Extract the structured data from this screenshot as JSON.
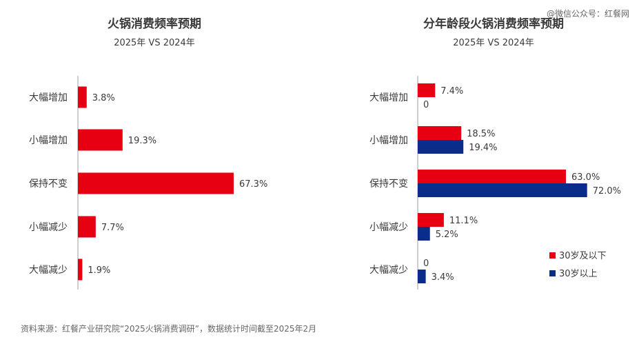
{
  "watermark_top": "@微信公众号：红餐网",
  "source": "资料来源：红餐产业研究院“2025火锅消费调研”，数据统计时间截至2025年2月",
  "chart_data": [
    {
      "type": "bar",
      "orientation": "horizontal",
      "title": "火锅消费频率预期",
      "subtitle": "2025年 VS 2024年",
      "categories": [
        "大幅增加",
        "小幅增加",
        "保持不变",
        "小幅减少",
        "大幅减少"
      ],
      "series": [
        {
          "values": [
            3.8,
            19.3,
            67.3,
            7.7,
            1.9
          ],
          "labels": [
            "3.8%",
            "19.3%",
            "67.3%",
            "7.7%",
            "1.9%"
          ],
          "color": "#e60012"
        }
      ],
      "xlim": [
        0,
        75
      ],
      "unit": "%"
    },
    {
      "type": "bar",
      "orientation": "horizontal",
      "title": "分年龄段火锅消费频率预期",
      "subtitle": "2025年 VS 2024年",
      "categories": [
        "大幅增加",
        "小幅增加",
        "保持不变",
        "小幅减少",
        "大幅减少"
      ],
      "series": [
        {
          "name": "30岁及以下",
          "values": [
            7.4,
            18.5,
            63.0,
            11.1,
            0
          ],
          "labels": [
            "7.4%",
            "18.5%",
            "63.0%",
            "11.1%",
            "0"
          ],
          "color": "#e60012"
        },
        {
          "name": "30岁以上",
          "values": [
            0,
            19.4,
            72.0,
            5.2,
            3.4
          ],
          "labels": [
            "0",
            "19.4%",
            "72.0%",
            "5.2%",
            "3.4%"
          ],
          "color": "#0a2d8c"
        }
      ],
      "xlim": [
        0,
        75
      ],
      "unit": "%",
      "legend_position": "bottom-right"
    }
  ]
}
